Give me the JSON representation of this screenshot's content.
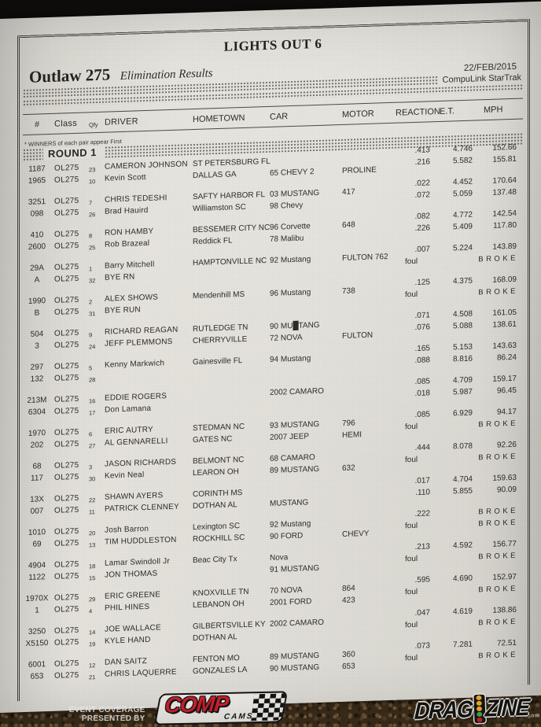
{
  "page": {
    "title": "LIGHTS OUT 6",
    "class_name": "Outlaw 275",
    "subtitle": "Elimination Results",
    "date": "22/FEB/2015",
    "timing_system": "CompuLink StarTrak",
    "winners_note": "* WINNERS of each pair appear First",
    "round_label": "ROUND 1"
  },
  "table": {
    "headers": [
      "#",
      "Class",
      "Qfy",
      "DRIVER",
      "HOMETOWN",
      "CAR",
      "MOTOR",
      "REACTION",
      "E.T.",
      "MPH"
    ],
    "pairs": [
      [
        {
          "num": "1187",
          "cls": "OL275",
          "qfy": "23",
          "driver": "CAMERON JOHNSON",
          "home": "ST PETERSBURG FL",
          "car": "",
          "motor": "",
          "rt": ".413",
          "et": "4.746",
          "mph": "152.66"
        },
        {
          "num": "1965",
          "cls": "OL275",
          "qfy": "10",
          "driver": "Kevin Scott",
          "home": "DALLAS GA",
          "car": "65 CHEVY 2",
          "motor": "PROLINE",
          "rt": ".216",
          "et": "5.582",
          "mph": "155.81"
        }
      ],
      [
        {
          "num": "3251",
          "cls": "OL275",
          "qfy": "7",
          "driver": "CHRIS TEDESHI",
          "home": "SAFTY HARBOR FL",
          "car": "03 MUSTANG",
          "motor": "417",
          "rt": ".022",
          "et": "4.452",
          "mph": "170.64"
        },
        {
          "num": "098",
          "cls": "OL275",
          "qfy": "26",
          "driver": "Brad Hauird",
          "home": "Williamston SC",
          "car": "98 Chevy",
          "motor": "",
          "rt": ".072",
          "et": "5.059",
          "mph": "137.48"
        }
      ],
      [
        {
          "num": "410",
          "cls": "OL275",
          "qfy": "8",
          "driver": "RON HAMBY",
          "home": "BESSEMER CITY NC",
          "car": "96 Corvette",
          "motor": "648",
          "rt": ".082",
          "et": "4.772",
          "mph": "142.54"
        },
        {
          "num": "2600",
          "cls": "OL275",
          "qfy": "25",
          "driver": "Rob Brazeal",
          "home": "Reddick FL",
          "car": "78 Malibu",
          "motor": "",
          "rt": ".226",
          "et": "5.409",
          "mph": "117.80"
        }
      ],
      [
        {
          "num": "29A",
          "cls": "OL275",
          "qfy": "1",
          "driver": "Barry Mitchell",
          "home": "HAMPTONVILLE NC",
          "car": "92 Mustang",
          "motor": "FULTON 762",
          "rt": ".007",
          "et": "5.224",
          "mph": "143.89"
        },
        {
          "num": "A",
          "cls": "OL275",
          "qfy": "32",
          "driver": "BYE RN",
          "home": "",
          "car": "",
          "motor": "",
          "rt": "foul",
          "et": "",
          "mph": "BROKE"
        }
      ],
      [
        {
          "num": "1990",
          "cls": "OL275",
          "qfy": "2",
          "driver": "ALEX SHOWS",
          "home": "Mendenhill MS",
          "car": "96 Mustang",
          "motor": "738",
          "rt": ".125",
          "et": "4.375",
          "mph": "168.09"
        },
        {
          "num": "B",
          "cls": "OL275",
          "qfy": "31",
          "driver": "BYE RUN",
          "home": "",
          "car": "",
          "motor": "",
          "rt": "foul",
          "et": "",
          "mph": "BROKE"
        }
      ],
      [
        {
          "num": "504",
          "cls": "OL275",
          "qfy": "9",
          "driver": "RICHARD REAGAN",
          "home": "RUTLEDGE TN",
          "car": "90 MU█TANG",
          "motor": "",
          "rt": ".071",
          "et": "4.508",
          "mph": "161.05"
        },
        {
          "num": "3",
          "cls": "OL275",
          "qfy": "24",
          "driver": "JEFF PLEMMONS",
          "home": "CHERRYVILLE",
          "car": "72 NOVA",
          "motor": "FULTON",
          "rt": ".076",
          "et": "5.088",
          "mph": "138.61"
        }
      ],
      [
        {
          "num": "297",
          "cls": "OL275",
          "qfy": "5",
          "driver": "Kenny Markwich",
          "home": "Gainesville FL",
          "car": "94 Mustang",
          "motor": "",
          "rt": ".165",
          "et": "5.153",
          "mph": "143.63"
        },
        {
          "num": "132",
          "cls": "OL275",
          "qfy": "28",
          "driver": "",
          "home": "",
          "car": "",
          "motor": "",
          "rt": ".088",
          "et": "8.816",
          "mph": "86.24"
        }
      ],
      [
        {
          "num": "213M",
          "cls": "OL275",
          "qfy": "16",
          "driver": "EDDIE ROGERS",
          "home": "",
          "car": "2002 CAMARO",
          "motor": "",
          "rt": ".085",
          "et": "4.709",
          "mph": "159.17"
        },
        {
          "num": "6304",
          "cls": "OL275",
          "qfy": "17",
          "driver": "Don Lamana",
          "home": "",
          "car": "",
          "motor": "",
          "rt": ".018",
          "et": "5.987",
          "mph": "96.45"
        }
      ],
      [
        {
          "num": "1970",
          "cls": "OL275",
          "qfy": "6",
          "driver": "ERIC AUTRY",
          "home": "STEDMAN NC",
          "car": "93 MUSTANG",
          "motor": "796",
          "rt": ".085",
          "et": "6.929",
          "mph": "94.17"
        },
        {
          "num": "202",
          "cls": "OL275",
          "qfy": "27",
          "driver": "AL GENNARELLI",
          "home": "GATES NC",
          "car": "2007 JEEP",
          "motor": "HEMI",
          "rt": "foul",
          "et": "",
          "mph": "BROKE"
        }
      ],
      [
        {
          "num": "68",
          "cls": "OL275",
          "qfy": "3",
          "driver": "JASON RICHARDS",
          "home": "BELMONT NC",
          "car": "68 CAMARO",
          "motor": "",
          "rt": ".444",
          "et": "8.078",
          "mph": "92.26"
        },
        {
          "num": "117",
          "cls": "OL275",
          "qfy": "30",
          "driver": "Kevin Neal",
          "home": "LEARON OH",
          "car": "89 MUSTANG",
          "motor": "632",
          "rt": "foul",
          "et": "",
          "mph": "BROKE"
        }
      ],
      [
        {
          "num": "13X",
          "cls": "OL275",
          "qfy": "22",
          "driver": "SHAWN AYERS",
          "home": "CORINTH MS",
          "car": "",
          "motor": "",
          "rt": ".017",
          "et": "4.704",
          "mph": "159.63"
        },
        {
          "num": "007",
          "cls": "OL275",
          "qfy": "11",
          "driver": "PATRICK CLENNEY",
          "home": "DOTHAN AL",
          "car": "MUSTANG",
          "motor": "",
          "rt": ".110",
          "et": "5.855",
          "mph": "90.09"
        }
      ],
      [
        {
          "num": "1010",
          "cls": "OL275",
          "qfy": "20",
          "driver": "Josh Barron",
          "home": "Lexington SC",
          "car": "92 Mustang",
          "motor": "",
          "rt": ".222",
          "et": "",
          "mph": "BROKE"
        },
        {
          "num": "69",
          "cls": "OL275",
          "qfy": "13",
          "driver": "TIM HUDDLESTON",
          "home": "ROCKHILL SC",
          "car": "90 FORD",
          "motor": "CHEVY",
          "rt": "foul",
          "et": "",
          "mph": "BROKE"
        }
      ],
      [
        {
          "num": "4904",
          "cls": "OL275",
          "qfy": "18",
          "driver": "Lamar Swindoll Jr",
          "home": "Beac City Tx",
          "car": "Nova",
          "motor": "",
          "rt": ".213",
          "et": "4.592",
          "mph": "156.77"
        },
        {
          "num": "1122",
          "cls": "OL275",
          "qfy": "15",
          "driver": "JON THOMAS",
          "home": "",
          "car": "91 MUSTANG",
          "motor": "",
          "rt": "foul",
          "et": "",
          "mph": "BROKE"
        }
      ],
      [
        {
          "num": "1970X",
          "cls": "OL275",
          "qfy": "29",
          "driver": "ERIC GREENE",
          "home": "KNOXVILLE TN",
          "car": "70 NOVA",
          "motor": "864",
          "rt": ".595",
          "et": "4.690",
          "mph": "152.97"
        },
        {
          "num": "1",
          "cls": "OL275",
          "qfy": "4",
          "driver": "PHIL HINES",
          "home": "LEBANON OH",
          "car": "2001 FORD",
          "motor": "423",
          "rt": "foul",
          "et": "",
          "mph": "BROKE"
        }
      ],
      [
        {
          "num": "3250",
          "cls": "OL275",
          "qfy": "14",
          "driver": "JOE WALLACE",
          "home": "GILBERTSVILLE KY",
          "car": "2002 CAMARO",
          "motor": "",
          "rt": ".047",
          "et": "4.619",
          "mph": "138.86"
        },
        {
          "num": "X5150",
          "cls": "OL275",
          "qfy": "19",
          "driver": "KYLE HAND",
          "home": "DOTHAN AL",
          "car": "",
          "motor": "",
          "rt": "foul",
          "et": "",
          "mph": "BROKE"
        }
      ],
      [
        {
          "num": "6001",
          "cls": "OL275",
          "qfy": "12",
          "driver": "DAN SAITZ",
          "home": "FENTON MO",
          "car": "89 MUSTANG",
          "motor": "360",
          "rt": ".073",
          "et": "7.281",
          "mph": "72.51"
        },
        {
          "num": "653",
          "cls": "OL275",
          "qfy": "21",
          "driver": "CHRIS LAQUERRE",
          "home": "GONZALES LA",
          "car": "90 MUSTANG",
          "motor": "653",
          "rt": "foul",
          "et": "",
          "mph": "BROKE"
        }
      ]
    ]
  },
  "footer": {
    "coverage_line1": "EVENT COVERAGE",
    "coverage_line2": "PRESENTED BY",
    "comp_logo": {
      "word": "COMP",
      "sub": "CAMS"
    },
    "dragzine_logo": {
      "left": "DRAG",
      "right": "ZINE",
      "domain": ".com"
    }
  },
  "colors": {
    "paper": "#e4e2db",
    "ink": "#2e2c27",
    "carpet": "#3e2f1c",
    "comp_red": "#d2202e",
    "tree_amber": "#f0b32b",
    "tree_green": "#46b14d",
    "tree_red": "#d2262c"
  }
}
